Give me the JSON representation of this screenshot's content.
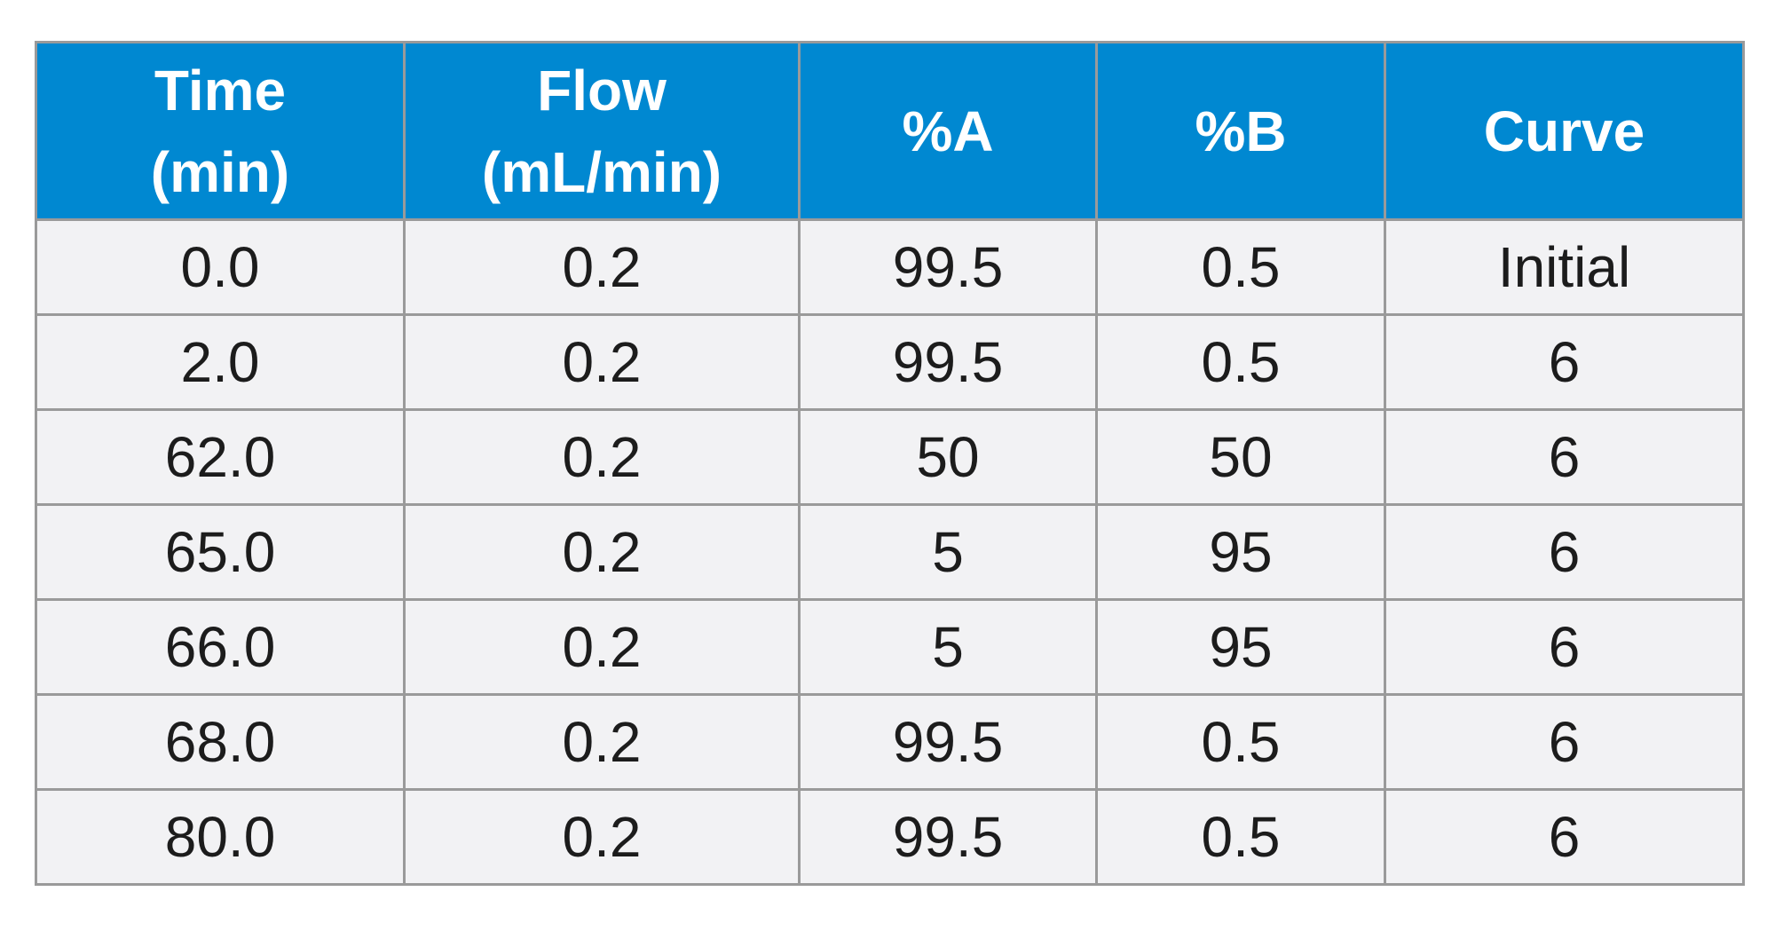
{
  "colors": {
    "header_bg": "#0088d1",
    "header_text": "#ffffff",
    "cell_bg": "#f2f2f4",
    "border": "#9a9a9a"
  },
  "chart_data": {
    "type": "table",
    "columns": [
      {
        "line1": "Time",
        "line2": "(min)"
      },
      {
        "line1": "Flow",
        "line2": "(mL/min)"
      },
      {
        "line1": "%A",
        "line2": ""
      },
      {
        "line1": "%B",
        "line2": ""
      },
      {
        "line1": "Curve",
        "line2": ""
      }
    ],
    "rows": [
      [
        "0.0",
        "0.2",
        "99.5",
        "0.5",
        "Initial"
      ],
      [
        "2.0",
        "0.2",
        "99.5",
        "0.5",
        "6"
      ],
      [
        "62.0",
        "0.2",
        "50",
        "50",
        "6"
      ],
      [
        "65.0",
        "0.2",
        "5",
        "95",
        "6"
      ],
      [
        "66.0",
        "0.2",
        "5",
        "95",
        "6"
      ],
      [
        "68.0",
        "0.2",
        "99.5",
        "0.5",
        "6"
      ],
      [
        "80.0",
        "0.2",
        "99.5",
        "0.5",
        "6"
      ]
    ]
  }
}
